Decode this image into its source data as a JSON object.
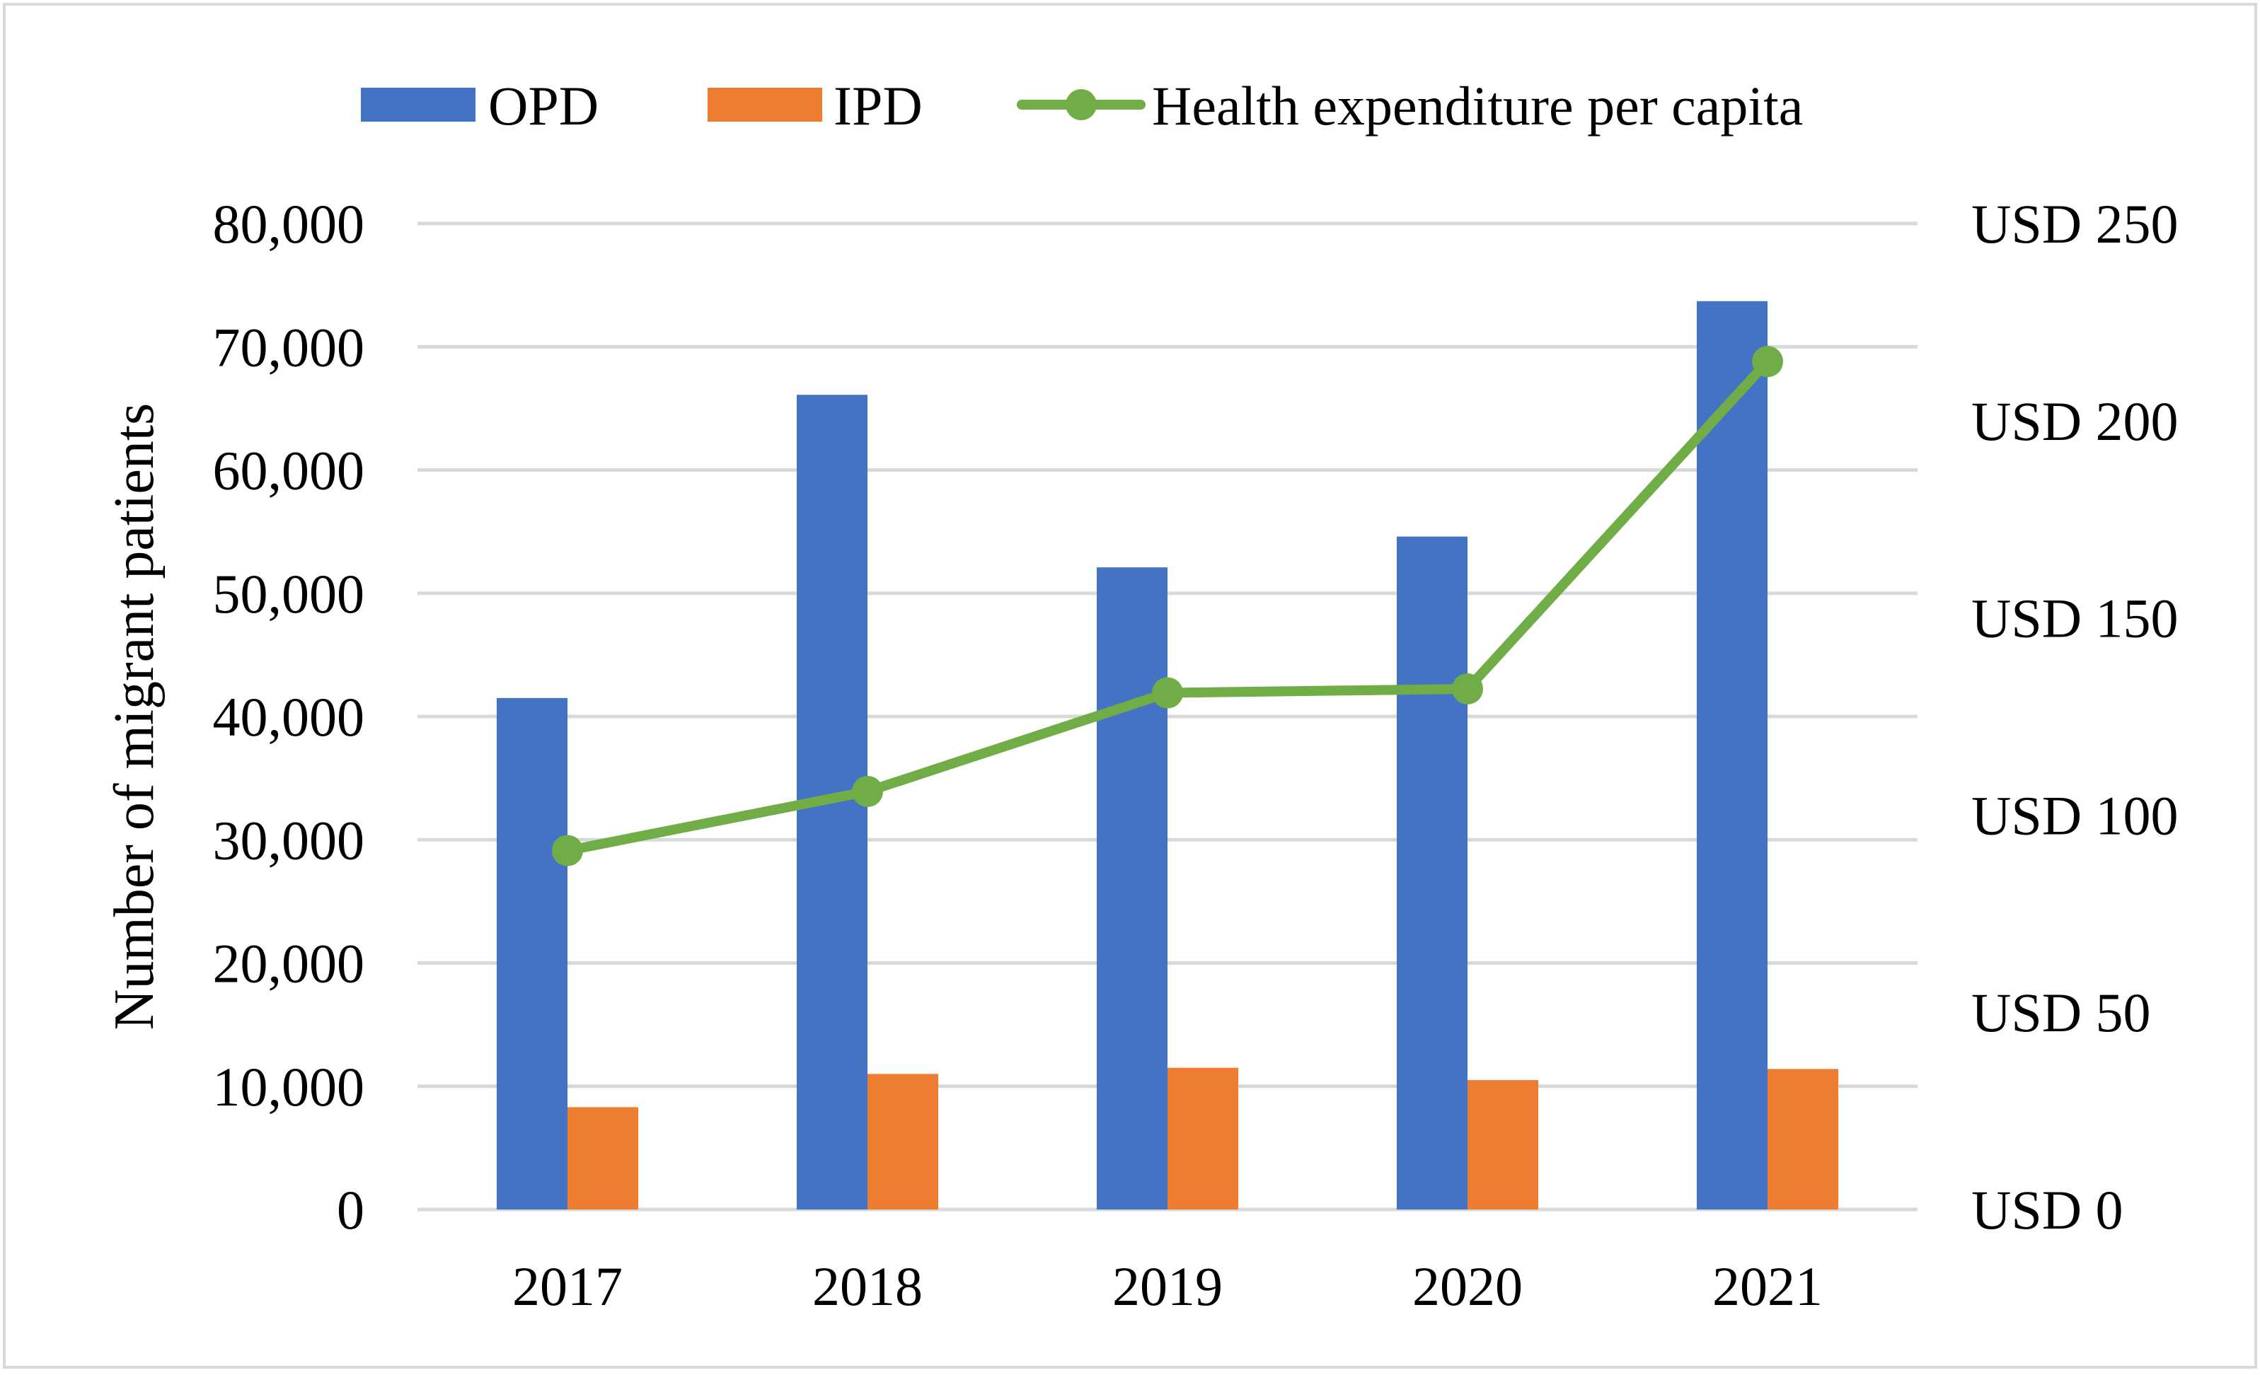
{
  "chart_data": {
    "type": "bar",
    "categories": [
      "2017",
      "2018",
      "2019",
      "2020",
      "2021"
    ],
    "series": [
      {
        "name": "OPD",
        "axis": "left",
        "kind": "bar",
        "color": "#4472C4",
        "values": [
          41500,
          66100,
          52100,
          54600,
          73700
        ]
      },
      {
        "name": "IPD",
        "axis": "left",
        "kind": "bar",
        "color": "#ED7D31",
        "values": [
          8300,
          11000,
          11500,
          10500,
          11400
        ]
      },
      {
        "name": "Health expenditure per capita",
        "axis": "right",
        "kind": "line",
        "color": "#70AD47",
        "values": [
          91,
          106,
          131,
          132,
          215
        ]
      }
    ],
    "title": "",
    "xlabel": "",
    "ylabel": "Number of migrant patients",
    "ylim": [
      0,
      80000
    ],
    "y_ticks": [
      0,
      10000,
      20000,
      30000,
      40000,
      50000,
      60000,
      70000,
      80000
    ],
    "y_tick_labels": [
      "0",
      "10,000",
      "20,000",
      "30,000",
      "40,000",
      "50,000",
      "60,000",
      "70,000",
      "80,000"
    ],
    "y2lim": [
      0,
      250
    ],
    "y2_ticks": [
      0,
      50,
      100,
      150,
      200,
      250
    ],
    "y2_tick_labels": [
      "USD 0",
      "USD 50",
      "USD 100",
      "USD 150",
      "USD 200",
      "USD 250"
    ],
    "grid": true,
    "gridline_color": "#D9D9D9",
    "legend_position": "top"
  }
}
